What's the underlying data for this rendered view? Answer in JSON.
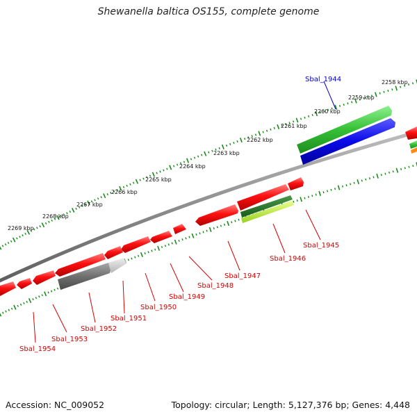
{
  "title": "Shewanella baltica OS155, complete genome",
  "footer": {
    "accession": "Accession: NC_009052",
    "summary": "Topology: circular; Length: 5,127,376 bp; Genes: 4,448"
  },
  "scale_labels": [
    "2258 kbp",
    "2259 kbp",
    "2260 kbp",
    "2261 kbp",
    "2262 kbp",
    "2263 kbp",
    "2264 kbp",
    "2265 kbp",
    "2266 kbp",
    "2267 kbp",
    "2268 kbp",
    "2269 kbp"
  ],
  "gene_labels": [
    {
      "text": "Sbal_1944",
      "color": "#0000cc"
    },
    {
      "text": "Sbal_1945",
      "color": "#d40000"
    },
    {
      "text": "Sbal_1946",
      "color": "#d40000"
    },
    {
      "text": "Sbal_1947",
      "color": "#d40000"
    },
    {
      "text": "Sbal_1948",
      "color": "#d40000"
    },
    {
      "text": "Sbal_1949",
      "color": "#d40000"
    },
    {
      "text": "Sbal_1950",
      "color": "#d40000"
    },
    {
      "text": "Sbal_1951",
      "color": "#d40000"
    },
    {
      "text": "Sbal_1952",
      "color": "#d40000"
    },
    {
      "text": "Sbal_1953",
      "color": "#d40000"
    },
    {
      "text": "Sbal_1954",
      "color": "#d40000"
    }
  ],
  "colors": {
    "backbone": "#8a8a8a",
    "gene_red": "#ee1111",
    "gene_green": "#3cc43c",
    "gene_blue": "#0a0ae0",
    "gene_gray": "#777777",
    "scale_ticks": "#1a8a1a"
  }
}
